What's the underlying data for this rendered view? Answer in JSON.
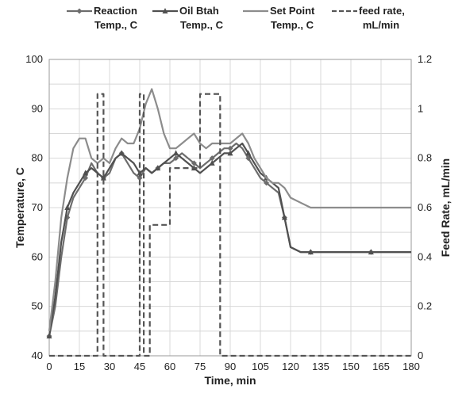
{
  "chart_data": {
    "type": "line",
    "title": "",
    "xlabel": "Time, min",
    "ylabel": "Temperature, C",
    "y2label": "Feed Rate, mL/min",
    "xlim": [
      0,
      180
    ],
    "ylim": [
      40,
      100
    ],
    "y2lim": [
      0,
      1.2
    ],
    "xticks": [
      "0",
      "15",
      "30",
      "45",
      "60",
      "75",
      "90",
      "105",
      "120",
      "135",
      "150",
      "165",
      "180"
    ],
    "yticks": [
      "40",
      "50",
      "60",
      "70",
      "80",
      "90",
      "100"
    ],
    "y2ticks": [
      "0",
      "0.2",
      "0.4",
      "0.6",
      "0.8",
      "1",
      "1.2"
    ],
    "grid": true,
    "legend_position": "top",
    "series": [
      {
        "name": "Reaction Temp., C",
        "name_lines": [
          "Reaction",
          "Temp., C"
        ],
        "axis": "left",
        "color": "#6d6d6d",
        "marker": "diamond",
        "x": [
          0,
          3,
          6,
          9,
          12,
          15,
          18,
          21,
          24,
          27,
          30,
          33,
          36,
          39,
          42,
          45,
          48,
          51,
          54,
          57,
          60,
          63,
          66,
          69,
          72,
          75,
          78,
          81,
          84,
          87,
          90,
          93,
          96,
          99,
          102,
          105,
          108,
          111,
          114,
          117,
          120,
          125,
          130,
          140,
          150,
          160,
          170,
          180
        ],
        "y": [
          44,
          50,
          60,
          68,
          72,
          74,
          76,
          79,
          77,
          76,
          77,
          80,
          81,
          79,
          77,
          76,
          78,
          77,
          78,
          79,
          79,
          80,
          81,
          80,
          79,
          78,
          79,
          80,
          81,
          82,
          82,
          83,
          82,
          80,
          78,
          76,
          75,
          74,
          73,
          68,
          62,
          61,
          61,
          61,
          61,
          61,
          61,
          61
        ]
      },
      {
        "name": "Oil Btah Temp., C",
        "name_lines": [
          "Oil Btah",
          "Temp., C"
        ],
        "axis": "left",
        "color": "#505050",
        "marker": "triangle",
        "x": [
          0,
          3,
          6,
          9,
          12,
          15,
          18,
          21,
          24,
          27,
          30,
          33,
          36,
          39,
          42,
          45,
          48,
          51,
          54,
          57,
          60,
          63,
          66,
          69,
          72,
          75,
          78,
          81,
          84,
          87,
          90,
          93,
          96,
          99,
          102,
          105,
          108,
          111,
          114,
          117,
          120,
          125,
          130,
          140,
          150,
          160,
          170,
          180
        ],
        "y": [
          44,
          52,
          63,
          70,
          73,
          75,
          77,
          78,
          77,
          76,
          78,
          80,
          81,
          80,
          79,
          77,
          78,
          77,
          78,
          79,
          80,
          81,
          80,
          79,
          78,
          77,
          78,
          79,
          80,
          81,
          81,
          82,
          83,
          81,
          79,
          77,
          76,
          75,
          74,
          68,
          62,
          61,
          61,
          61,
          61,
          61,
          61,
          61
        ]
      },
      {
        "name": "Set Point Temp., C",
        "name_lines": [
          "Set Point",
          "Temp., C"
        ],
        "axis": "left",
        "color": "#8c8c8c",
        "marker": "none",
        "x": [
          0,
          3,
          6,
          9,
          12,
          15,
          18,
          21,
          24,
          27,
          30,
          33,
          36,
          39,
          42,
          45,
          48,
          51,
          54,
          57,
          60,
          63,
          66,
          69,
          72,
          75,
          78,
          81,
          84,
          87,
          90,
          93,
          96,
          99,
          102,
          105,
          108,
          111,
          114,
          117,
          120,
          125,
          130,
          140,
          150,
          160,
          170,
          180
        ],
        "y": [
          45,
          55,
          68,
          76,
          82,
          84,
          84,
          80,
          79,
          80,
          79,
          82,
          84,
          83,
          83,
          86,
          91,
          94,
          90,
          85,
          82,
          82,
          83,
          84,
          85,
          83,
          82,
          83,
          83,
          83,
          83,
          84,
          85,
          83,
          80,
          78,
          76,
          75,
          75,
          74,
          72,
          71,
          70,
          70,
          70,
          70,
          70,
          70
        ]
      },
      {
        "name": "feed rate, mL/min",
        "name_lines": [
          "feed rate,",
          "mL/min"
        ],
        "axis": "right",
        "color": "#555555",
        "marker": "none",
        "dashed": true,
        "x": [
          0,
          24,
          24,
          27,
          27,
          45,
          45,
          47,
          47,
          50,
          50,
          60,
          60,
          75,
          75,
          85,
          85,
          88,
          88,
          90,
          90,
          180
        ],
        "y": [
          0,
          0,
          1.06,
          1.06,
          0,
          0,
          1.06,
          1.06,
          0,
          0,
          0.53,
          0.53,
          0.76,
          0.76,
          1.06,
          1.06,
          0,
          0,
          0,
          0,
          0,
          0
        ]
      }
    ]
  }
}
